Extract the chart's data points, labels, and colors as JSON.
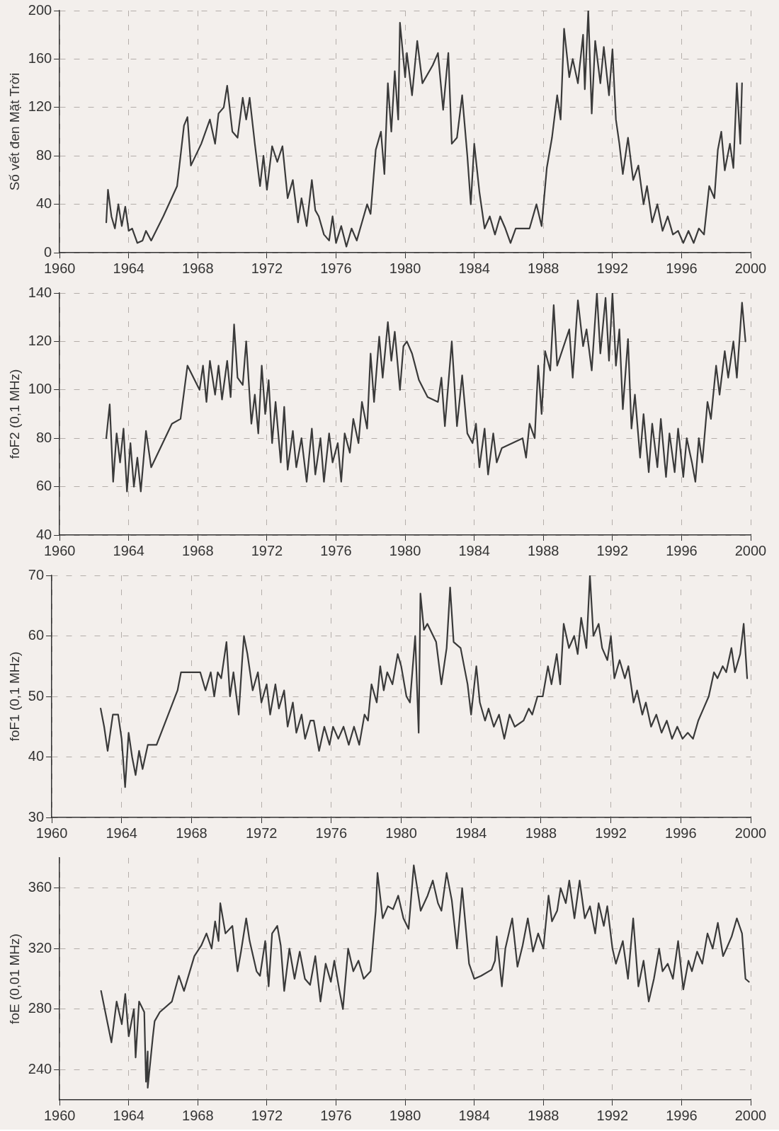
{
  "chart_data": [
    {
      "type": "line",
      "ylabel": "Số vết đen Mặt Trời",
      "color": "#3a3a3a",
      "marker": "none",
      "grid": true,
      "xlim": [
        1960,
        2000
      ],
      "xticks": [
        1960,
        1964,
        1968,
        1972,
        1976,
        1980,
        1984,
        1988,
        1992,
        1996,
        2000
      ],
      "ylim": [
        0,
        200
      ],
      "yticks": [
        0,
        40,
        80,
        120,
        160,
        200
      ],
      "x": [
        1962.7,
        1962.8,
        1963.0,
        1963.2,
        1963.4,
        1963.6,
        1963.8,
        1964.0,
        1964.2,
        1964.5,
        1964.8,
        1965.0,
        1965.3,
        1966.0,
        1966.8,
        1967.2,
        1967.4,
        1967.6,
        1968.2,
        1968.7,
        1969.0,
        1969.2,
        1969.5,
        1969.7,
        1970.0,
        1970.3,
        1970.6,
        1970.8,
        1971.0,
        1971.3,
        1971.6,
        1971.8,
        1972.0,
        1972.3,
        1972.6,
        1972.9,
        1973.2,
        1973.5,
        1973.8,
        1974.0,
        1974.3,
        1974.6,
        1974.8,
        1975.0,
        1975.3,
        1975.6,
        1975.8,
        1976.0,
        1976.3,
        1976.6,
        1976.9,
        1977.2,
        1977.5,
        1977.8,
        1978.0,
        1978.3,
        1978.6,
        1978.8,
        1979.0,
        1979.2,
        1979.4,
        1979.6,
        1979.7,
        1980.0,
        1980.1,
        1980.4,
        1980.7,
        1981.0,
        1981.6,
        1981.9,
        1982.2,
        1982.5,
        1982.7,
        1983.0,
        1983.3,
        1983.6,
        1983.8,
        1984.0,
        1984.3,
        1984.6,
        1984.9,
        1985.2,
        1985.5,
        1985.8,
        1986.1,
        1986.4,
        1987.2,
        1987.6,
        1987.9,
        1988.2,
        1988.5,
        1988.8,
        1989.0,
        1989.2,
        1989.5,
        1989.7,
        1990.0,
        1990.3,
        1990.4,
        1990.6,
        1990.8,
        1991.0,
        1991.3,
        1991.5,
        1991.8,
        1992.0,
        1992.2,
        1992.4,
        1992.6,
        1992.9,
        1993.2,
        1993.5,
        1993.8,
        1994.0,
        1994.3,
        1994.6,
        1994.9,
        1995.2,
        1995.5,
        1995.8,
        1996.1,
        1996.4,
        1996.7,
        1997.0,
        1997.3,
        1997.6,
        1997.9,
        1998.1,
        1998.3,
        1998.5,
        1998.8,
        1999.0,
        1999.2,
        1999.4,
        1999.5
      ],
      "values": [
        25,
        52,
        30,
        20,
        40,
        22,
        38,
        18,
        20,
        8,
        10,
        18,
        10,
        30,
        55,
        105,
        112,
        72,
        90,
        110,
        90,
        115,
        120,
        138,
        100,
        95,
        128,
        110,
        128,
        90,
        55,
        80,
        52,
        88,
        75,
        88,
        45,
        60,
        25,
        45,
        22,
        60,
        35,
        30,
        15,
        10,
        30,
        8,
        22,
        5,
        20,
        10,
        25,
        40,
        32,
        85,
        100,
        65,
        140,
        100,
        150,
        110,
        190,
        145,
        165,
        130,
        175,
        140,
        155,
        165,
        118,
        165,
        90,
        95,
        130,
        80,
        40,
        90,
        50,
        20,
        30,
        15,
        30,
        20,
        8,
        20,
        20,
        40,
        22,
        70,
        95,
        130,
        110,
        185,
        145,
        160,
        140,
        180,
        135,
        200,
        115,
        175,
        140,
        170,
        130,
        168,
        110,
        90,
        65,
        95,
        60,
        72,
        40,
        55,
        25,
        40,
        18,
        30,
        15,
        18,
        8,
        18,
        8,
        20,
        15,
        55,
        45,
        85,
        100,
        68,
        90,
        70,
        140,
        90,
        140
      ]
    },
    {
      "type": "line",
      "ylabel": "foF2 (0,1 MHz)",
      "color": "#3a3a3a",
      "marker": "none",
      "grid": true,
      "xlim": [
        1960,
        2000
      ],
      "xticks": [
        1960,
        1964,
        1968,
        1972,
        1976,
        1980,
        1984,
        1988,
        1992,
        1996,
        2000
      ],
      "ylim": [
        40,
        140
      ],
      "yticks": [
        40,
        60,
        80,
        100,
        120,
        140
      ],
      "x": [
        1962.7,
        1962.9,
        1963.1,
        1963.3,
        1963.5,
        1963.7,
        1963.9,
        1964.1,
        1964.3,
        1964.5,
        1964.7,
        1965.0,
        1965.3,
        1966.5,
        1967.0,
        1967.4,
        1968.1,
        1968.3,
        1968.5,
        1968.7,
        1969.0,
        1969.2,
        1969.4,
        1969.7,
        1969.9,
        1970.1,
        1970.3,
        1970.6,
        1970.8,
        1971.1,
        1971.3,
        1971.5,
        1971.7,
        1971.9,
        1972.1,
        1972.3,
        1972.5,
        1972.8,
        1973.0,
        1973.2,
        1973.5,
        1973.7,
        1974.0,
        1974.3,
        1974.6,
        1974.8,
        1975.1,
        1975.3,
        1975.6,
        1975.8,
        1976.1,
        1976.3,
        1976.5,
        1976.8,
        1977.0,
        1977.3,
        1977.5,
        1977.8,
        1978.0,
        1978.2,
        1978.5,
        1978.7,
        1979.0,
        1979.2,
        1979.4,
        1979.7,
        1979.9,
        1980.1,
        1980.4,
        1980.8,
        1981.3,
        1981.9,
        1982.1,
        1982.3,
        1982.7,
        1983.0,
        1983.3,
        1983.6,
        1983.9,
        1984.1,
        1984.3,
        1984.6,
        1984.8,
        1985.1,
        1985.3,
        1985.6,
        1986.8,
        1987.0,
        1987.2,
        1987.5,
        1987.7,
        1987.9,
        1988.1,
        1988.4,
        1988.6,
        1988.8,
        1989.5,
        1989.7,
        1990.0,
        1990.3,
        1990.5,
        1990.8,
        1991.1,
        1991.3,
        1991.6,
        1991.8,
        1992.0,
        1992.2,
        1992.4,
        1992.6,
        1992.9,
        1993.1,
        1993.3,
        1993.6,
        1993.8,
        1994.1,
        1994.3,
        1994.6,
        1994.8,
        1995.1,
        1995.3,
        1995.6,
        1995.8,
        1996.1,
        1996.3,
        1996.6,
        1996.8,
        1997.0,
        1997.2,
        1997.5,
        1997.7,
        1998.0,
        1998.2,
        1998.5,
        1998.7,
        1999.0,
        1999.2,
        1999.5,
        1999.7
      ],
      "values": [
        80,
        94,
        62,
        82,
        70,
        84,
        58,
        78,
        60,
        72,
        58,
        83,
        68,
        86,
        88,
        110,
        100,
        110,
        95,
        112,
        98,
        110,
        96,
        112,
        97,
        127,
        105,
        102,
        120,
        86,
        98,
        82,
        110,
        90,
        104,
        78,
        95,
        70,
        93,
        67,
        83,
        68,
        80,
        62,
        84,
        65,
        80,
        62,
        82,
        70,
        78,
        62,
        82,
        74,
        88,
        78,
        95,
        84,
        115,
        95,
        122,
        105,
        128,
        112,
        124,
        100,
        118,
        120,
        115,
        104,
        97,
        95,
        105,
        85,
        120,
        85,
        106,
        82,
        78,
        86,
        68,
        84,
        65,
        82,
        70,
        76,
        80,
        72,
        86,
        80,
        110,
        90,
        116,
        108,
        135,
        110,
        125,
        105,
        137,
        118,
        125,
        108,
        140,
        115,
        138,
        112,
        140,
        110,
        125,
        92,
        121,
        84,
        98,
        72,
        90,
        66,
        86,
        68,
        88,
        64,
        82,
        66,
        84,
        64,
        80,
        70,
        62,
        80,
        70,
        95,
        88,
        110,
        98,
        116,
        105,
        120,
        105,
        136,
        120
      ]
    },
    {
      "type": "line",
      "ylabel": "foF1 (0,1 MHz)",
      "color": "#3a3a3a",
      "marker": "none",
      "grid": true,
      "xlim": [
        1960,
        2000
      ],
      "xticks": [
        1960,
        1964,
        1968,
        1972,
        1976,
        1980,
        1984,
        1988,
        1992,
        1996,
        2000
      ],
      "ylim": [
        30,
        70
      ],
      "yticks": [
        30,
        40,
        50,
        60,
        70
      ],
      "x": [
        1962.8,
        1963.0,
        1963.2,
        1963.5,
        1963.8,
        1964.0,
        1964.2,
        1964.4,
        1964.6,
        1964.8,
        1965.0,
        1965.2,
        1965.5,
        1966.0,
        1966.8,
        1967.2,
        1967.4,
        1968.5,
        1968.8,
        1969.1,
        1969.3,
        1969.5,
        1969.7,
        1970.0,
        1970.2,
        1970.4,
        1970.7,
        1970.9,
        1971.0,
        1971.2,
        1971.5,
        1971.8,
        1972.0,
        1972.3,
        1972.5,
        1972.8,
        1973.0,
        1973.3,
        1973.5,
        1973.8,
        1974.0,
        1974.3,
        1974.5,
        1974.8,
        1975.0,
        1975.3,
        1975.6,
        1975.9,
        1976.1,
        1976.4,
        1976.7,
        1977.0,
        1977.3,
        1977.6,
        1977.9,
        1978.1,
        1978.3,
        1978.6,
        1978.8,
        1979.0,
        1979.2,
        1979.5,
        1979.8,
        1980.0,
        1980.3,
        1980.5,
        1980.8,
        1981.0,
        1981.1,
        1981.3,
        1981.5,
        1982.0,
        1982.3,
        1982.6,
        1982.8,
        1983.0,
        1983.4,
        1983.8,
        1984.0,
        1984.3,
        1984.5,
        1984.8,
        1985.0,
        1985.3,
        1985.6,
        1985.9,
        1986.2,
        1986.5,
        1987.0,
        1987.3,
        1987.5,
        1987.8,
        1988.1,
        1988.4,
        1988.6,
        1988.9,
        1989.1,
        1989.3,
        1989.6,
        1989.9,
        1990.1,
        1990.3,
        1990.6,
        1990.8,
        1991.0,
        1991.3,
        1991.5,
        1991.8,
        1992.0,
        1992.2,
        1992.5,
        1992.8,
        1993.0,
        1993.3,
        1993.5,
        1993.8,
        1994.0,
        1994.3,
        1994.6,
        1994.9,
        1995.2,
        1995.5,
        1995.8,
        1996.1,
        1996.4,
        1996.7,
        1997.0,
        1997.3,
        1997.6,
        1997.9,
        1998.1,
        1998.4,
        1998.6,
        1998.9,
        1999.1,
        1999.4,
        1999.6,
        1999.8
      ],
      "values": [
        48,
        45,
        41,
        47,
        47,
        43,
        35,
        44,
        40,
        37,
        41,
        38,
        42,
        42,
        48,
        51,
        54,
        54,
        51,
        54,
        50,
        54,
        53,
        59,
        50,
        54,
        47,
        56,
        60,
        57,
        51,
        54,
        49,
        52,
        47,
        52,
        48,
        51,
        45,
        49,
        44,
        47,
        43,
        46,
        46,
        41,
        45,
        42,
        45,
        43,
        45,
        42,
        45,
        42,
        47,
        46,
        52,
        49,
        55,
        51,
        54,
        52,
        57,
        55,
        50,
        49,
        60,
        44,
        67,
        61,
        62,
        59,
        52,
        58,
        68,
        59,
        58,
        52,
        47,
        55,
        49,
        46,
        48,
        45,
        47,
        43,
        47,
        45,
        46,
        48,
        47,
        50,
        50,
        55,
        52,
        57,
        52,
        62,
        58,
        60,
        57,
        63,
        58,
        70,
        60,
        62,
        58,
        56,
        60,
        53,
        56,
        53,
        55,
        49,
        51,
        47,
        49,
        45,
        47,
        44,
        46,
        43,
        45,
        43,
        44,
        43,
        46,
        48,
        50,
        54,
        53,
        55,
        54,
        58,
        54,
        57,
        62,
        53
      ]
    },
    {
      "type": "line",
      "ylabel": "foE (0,01 MHz)",
      "color": "#3a3a3a",
      "marker": "none",
      "grid": true,
      "xlim": [
        1960,
        2000
      ],
      "xticks": [
        1960,
        1964,
        1968,
        1972,
        1976,
        1980,
        1984,
        1988,
        1992,
        1996,
        2000
      ],
      "ylim": [
        220,
        380
      ],
      "yticks": [
        240,
        280,
        320,
        360
      ],
      "x": [
        1962.4,
        1962.7,
        1963.0,
        1963.3,
        1963.6,
        1963.8,
        1964.0,
        1964.3,
        1964.4,
        1964.6,
        1964.9,
        1965.0,
        1965.1,
        1965.1,
        1965.4,
        1965.5,
        1965.8,
        1966.5,
        1966.9,
        1967.2,
        1967.8,
        1968.2,
        1968.5,
        1968.8,
        1969.0,
        1969.2,
        1969.3,
        1969.6,
        1970.0,
        1970.3,
        1970.5,
        1970.8,
        1971.0,
        1971.4,
        1971.6,
        1971.9,
        1972.1,
        1972.3,
        1972.6,
        1972.8,
        1973.0,
        1973.3,
        1973.6,
        1973.9,
        1974.2,
        1974.5,
        1974.8,
        1975.1,
        1975.4,
        1975.7,
        1975.9,
        1976.2,
        1976.4,
        1976.7,
        1977.0,
        1977.3,
        1977.6,
        1978.0,
        1978.3,
        1978.4,
        1978.7,
        1979.0,
        1979.3,
        1979.6,
        1979.9,
        1980.2,
        1980.5,
        1980.9,
        1981.3,
        1981.6,
        1981.9,
        1982.1,
        1982.4,
        1982.7,
        1983.0,
        1983.3,
        1983.7,
        1984.0,
        1984.4,
        1985.0,
        1985.2,
        1985.3,
        1985.6,
        1985.8,
        1986.2,
        1986.5,
        1986.8,
        1987.1,
        1987.4,
        1987.7,
        1988.0,
        1988.3,
        1988.5,
        1988.8,
        1989.0,
        1989.3,
        1989.5,
        1989.8,
        1990.1,
        1990.4,
        1990.7,
        1991.0,
        1991.2,
        1991.5,
        1991.7,
        1992.0,
        1992.2,
        1992.6,
        1992.9,
        1993.2,
        1993.5,
        1993.8,
        1994.1,
        1994.4,
        1994.7,
        1994.9,
        1995.2,
        1995.5,
        1995.8,
        1996.1,
        1996.4,
        1996.6,
        1996.9,
        1997.2,
        1997.5,
        1997.8,
        1998.1,
        1998.4,
        1998.6,
        1998.9,
        1999.2,
        1999.5,
        1999.7,
        1999.9
      ],
      "values": [
        292,
        275,
        258,
        285,
        270,
        290,
        262,
        280,
        248,
        285,
        278,
        232,
        252,
        228,
        262,
        272,
        278,
        285,
        302,
        292,
        315,
        322,
        330,
        320,
        338,
        325,
        350,
        330,
        335,
        305,
        318,
        340,
        325,
        305,
        302,
        325,
        295,
        330,
        335,
        322,
        292,
        320,
        300,
        318,
        300,
        296,
        315,
        285,
        310,
        298,
        312,
        292,
        280,
        320,
        305,
        312,
        300,
        305,
        345,
        370,
        340,
        348,
        346,
        355,
        340,
        333,
        375,
        345,
        355,
        365,
        350,
        345,
        370,
        352,
        320,
        360,
        310,
        300,
        302,
        306,
        312,
        328,
        295,
        320,
        340,
        308,
        322,
        340,
        318,
        330,
        320,
        355,
        338,
        345,
        360,
        350,
        365,
        340,
        365,
        340,
        348,
        330,
        350,
        335,
        348,
        320,
        310,
        325,
        300,
        340,
        295,
        312,
        285,
        300,
        320,
        305,
        310,
        300,
        325,
        293,
        312,
        305,
        318,
        310,
        330,
        320,
        337,
        315,
        320,
        328,
        340,
        330,
        300,
        298
      ]
    }
  ]
}
